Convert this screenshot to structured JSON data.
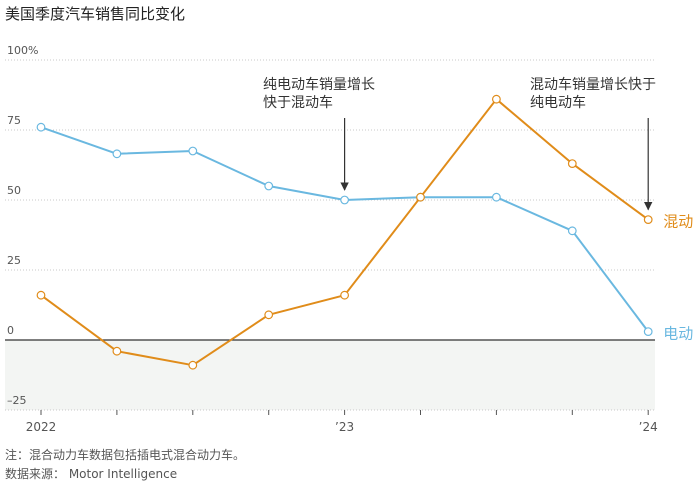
{
  "title": "美国季度汽车销售同比变化",
  "footnote": "注：混合动力车数据包括插电式混合动力车。",
  "source": "数据来源：  Motor Intelligence",
  "chart_data": {
    "type": "line",
    "title": "美国季度汽车销售同比变化",
    "x_tick_labels": [
      "2022",
      "’23",
      "’24"
    ],
    "x_tick_positions": [
      0,
      4,
      8
    ],
    "y_tick_labels": [
      "100%",
      "75",
      "50",
      "25",
      "0",
      "–25"
    ],
    "y_ticks": [
      100,
      75,
      50,
      25,
      0,
      -25
    ],
    "ylim": [
      -25,
      100
    ],
    "quarters": [
      "2022 Q1",
      "2022 Q2",
      "2022 Q3",
      "2022 Q4",
      "2023 Q1",
      "2023 Q2",
      "2023 Q3",
      "2023 Q4",
      "2024 Q1"
    ],
    "series": [
      {
        "name": "电动",
        "color": "#6ab8e0",
        "values": [
          76,
          66.5,
          67.5,
          55,
          50,
          51,
          51,
          39,
          3
        ]
      },
      {
        "name": "混动",
        "color": "#e08c1a",
        "values": [
          16,
          -4,
          -9,
          9,
          16,
          51,
          86,
          63,
          43
        ]
      }
    ],
    "annotations": [
      {
        "lines": [
          "纯电动车销量增长",
          "快于混动车"
        ],
        "at_index": 4
      },
      {
        "lines": [
          "混动车销量增长快于",
          "纯电动车"
        ],
        "at_index": 8
      }
    ],
    "negative_region_color": "#f3f5f3",
    "grid": true
  }
}
